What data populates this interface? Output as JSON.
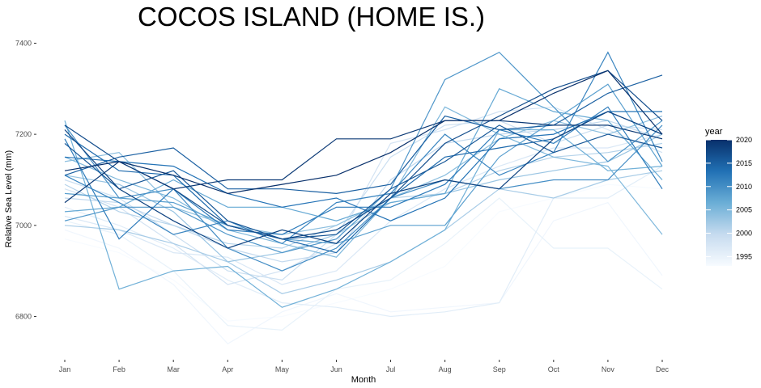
{
  "chart_data": {
    "type": "line",
    "title": "COCOS ISLAND (HOME IS.)",
    "xlabel": "Month",
    "ylabel": "Relative Sea Level (mm)",
    "categories": [
      "Jan",
      "Feb",
      "Mar",
      "Apr",
      "May",
      "Jun",
      "Jul",
      "Aug",
      "Sep",
      "Oct",
      "Nov",
      "Dec"
    ],
    "y_ticks": [
      6800,
      7000,
      7200,
      7400
    ],
    "ylim": [
      6710,
      7420
    ],
    "grid": false,
    "legend": {
      "title": "year",
      "position": "right",
      "type": "colorbar",
      "ticks": [
        1995,
        2000,
        2005,
        2010,
        2015,
        2020
      ],
      "range": [
        1993,
        2020
      ],
      "colors": [
        "#f7fbff",
        "#c6dbef",
        "#6baed6",
        "#2171b5",
        "#08306b"
      ]
    },
    "series": [
      {
        "year": 1993,
        "values": [
          6970,
          6940,
          6880,
          6790,
          6800,
          6830,
          6860,
          6910,
          7030,
          7060,
          7090,
          7080
        ]
      },
      {
        "year": 1994,
        "values": [
          6990,
          6950,
          6870,
          6740,
          6810,
          6850,
          6810,
          6820,
          6830,
          7010,
          7050,
          6890
        ]
      },
      {
        "year": 1995,
        "values": [
          7010,
          6980,
          6900,
          6780,
          6770,
          6860,
          6880,
          6960,
          7060,
          6950,
          6950,
          6860
        ]
      },
      {
        "year": 1996,
        "values": [
          7040,
          7000,
          6950,
          6880,
          6830,
          6820,
          6800,
          6810,
          6830,
          7060,
          7060,
          7130
        ]
      },
      {
        "year": 1997,
        "values": [
          7020,
          6990,
          6940,
          6930,
          6870,
          6900,
          7010,
          7080,
          7130,
          7170,
          7170,
          7200
        ]
      },
      {
        "year": 1998,
        "values": [
          7080,
          7040,
          6960,
          6870,
          6900,
          6960,
          7180,
          7210,
          7250,
          7260,
          7210,
          7160
        ]
      },
      {
        "year": 1999,
        "values": [
          7100,
          7060,
          6980,
          6900,
          6880,
          6980,
          7150,
          7220,
          7230,
          7180,
          7220,
          7210
        ]
      },
      {
        "year": 2000,
        "values": [
          7060,
          7050,
          7000,
          6950,
          6920,
          6940,
          7100,
          7180,
          7200,
          7210,
          7230,
          7190
        ]
      },
      {
        "year": 2001,
        "values": [
          7090,
          7030,
          7000,
          6960,
          6950,
          7000,
          7060,
          7070,
          7120,
          7150,
          7160,
          7180
        ]
      },
      {
        "year": 2002,
        "values": [
          7000,
          6990,
          6960,
          6920,
          6850,
          6880,
          6920,
          6990,
          7080,
          7060,
          7100,
          7120
        ]
      },
      {
        "year": 2003,
        "values": [
          7110,
          7090,
          7030,
          6920,
          6940,
          6980,
          7050,
          7070,
          7100,
          7120,
          7140,
          7200
        ]
      },
      {
        "year": 2004,
        "values": [
          7140,
          7160,
          7040,
          7000,
          6980,
          7000,
          7060,
          7110,
          7190,
          7230,
          7200,
          7240
        ]
      },
      {
        "year": 2005,
        "values": [
          7150,
          7100,
          7060,
          6990,
          6960,
          6930,
          7060,
          7260,
          7200,
          7150,
          7130,
          6980
        ]
      },
      {
        "year": 2006,
        "values": [
          7230,
          6860,
          6900,
          6910,
          6820,
          6860,
          6920,
          6990,
          7210,
          7210,
          7120,
          7130
        ]
      },
      {
        "year": 2007,
        "values": [
          7030,
          7040,
          7100,
          7040,
          7040,
          7010,
          7050,
          7070,
          7300,
          7250,
          7230,
          7100
        ]
      },
      {
        "year": 2008,
        "values": [
          7070,
          7060,
          7050,
          7000,
          6970,
          6960,
          7000,
          7000,
          7150,
          7230,
          7310,
          7130
        ]
      },
      {
        "year": 2009,
        "values": [
          7010,
          7040,
          7040,
          6980,
          6940,
          6970,
          7080,
          7320,
          7380,
          7260,
          7140,
          7230
        ]
      },
      {
        "year": 2010,
        "values": [
          7220,
          7060,
          7080,
          6950,
          6900,
          6950,
          7060,
          7100,
          7080,
          7100,
          7100,
          7220
        ]
      },
      {
        "year": 2011,
        "values": [
          7110,
          7050,
          6980,
          7010,
          6960,
          7050,
          7070,
          7200,
          7110,
          7160,
          7380,
          7140
        ]
      },
      {
        "year": 2012,
        "values": [
          7190,
          6970,
          7080,
          6990,
          6980,
          7040,
          7040,
          7090,
          7210,
          7180,
          7260,
          7080
        ]
      },
      {
        "year": 2013,
        "values": [
          7150,
          7140,
          7130,
          7070,
          7040,
          7060,
          7010,
          7060,
          7190,
          7200,
          7250,
          7250
        ]
      },
      {
        "year": 2014,
        "values": [
          7200,
          7120,
          7110,
          7000,
          6970,
          6940,
          7060,
          7150,
          7170,
          7190,
          7250,
          7200
        ]
      },
      {
        "year": 2015,
        "values": [
          7110,
          7150,
          7170,
          7080,
          7080,
          7070,
          7090,
          7240,
          7210,
          7220,
          7290,
          7330
        ]
      },
      {
        "year": 2016,
        "values": [
          7180,
          7080,
          7120,
          7010,
          6970,
          6980,
          7080,
          7140,
          7220,
          7160,
          7200,
          7170
        ]
      },
      {
        "year": 2017,
        "values": [
          7220,
          7140,
          7080,
          7000,
          6970,
          6990,
          7060,
          7180,
          7240,
          7300,
          7340,
          7230
        ]
      },
      {
        "year": 2018,
        "values": [
          7210,
          7080,
          7010,
          6950,
          6990,
          6960,
          7070,
          7100,
          7080,
          7190,
          7250,
          7200
        ]
      },
      {
        "year": 2019,
        "values": [
          7050,
          7140,
          7080,
          7100,
          7100,
          7190,
          7190,
          7230,
          7230,
          7220,
          7220,
          7190
        ]
      },
      {
        "year": 2020,
        "values": [
          7120,
          7140,
          7110,
          7070,
          7090,
          7110,
          7160,
          7230,
          7230,
          7290,
          7340,
          7200
        ]
      }
    ]
  }
}
